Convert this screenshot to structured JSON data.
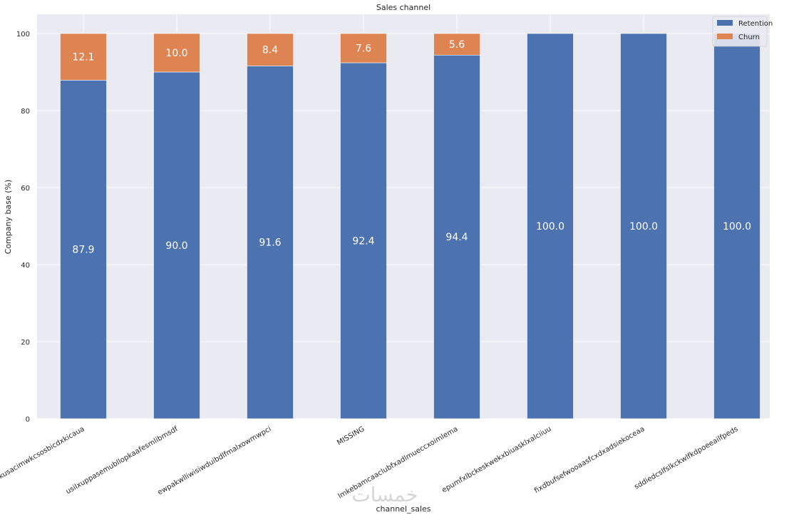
{
  "chart_data": {
    "type": "bar",
    "stacked": true,
    "title": "Sales channel",
    "xlabel": "channel_sales",
    "ylabel": "Company base (%)",
    "ylim": [
      0,
      100
    ],
    "yticks": [
      0,
      20,
      40,
      60,
      80,
      100
    ],
    "grid": true,
    "legend_position": "top-right",
    "categories": [
      "foosdfpfkusacimwkcsosbicdxkicaua",
      "usilxuppasemubllopkaafesmlibmsdf",
      "ewpakwlliwisiwduibdlfmalxowmwpci",
      "MISSING",
      "lmkebamcaaclubfxadlmueccxoimlema",
      "epumfxlbckeskwekxbiuasklxalciiuu",
      "fixdbufsefwooaasfcxdxadsiekoceaa",
      "sddiedcslfslkckwlfkdpoeeailfpeds"
    ],
    "series": [
      {
        "name": "Retention",
        "color": "#4c72b0",
        "values": [
          87.9,
          90.0,
          91.6,
          92.4,
          94.4,
          100.0,
          100.0,
          100.0
        ]
      },
      {
        "name": "Churn",
        "color": "#dd8452",
        "values": [
          12.1,
          10.0,
          8.4,
          7.6,
          5.6,
          null,
          null,
          null
        ]
      }
    ],
    "data_labels": {
      "Retention": [
        "87.9",
        "90.0",
        "91.6",
        "92.4",
        "94.4",
        "100.0",
        "100.0",
        "100.0"
      ],
      "Churn": [
        "12.1",
        "10.0",
        "8.4",
        "7.6",
        "5.6",
        "",
        "",
        ""
      ]
    }
  },
  "watermark": "خمسات"
}
